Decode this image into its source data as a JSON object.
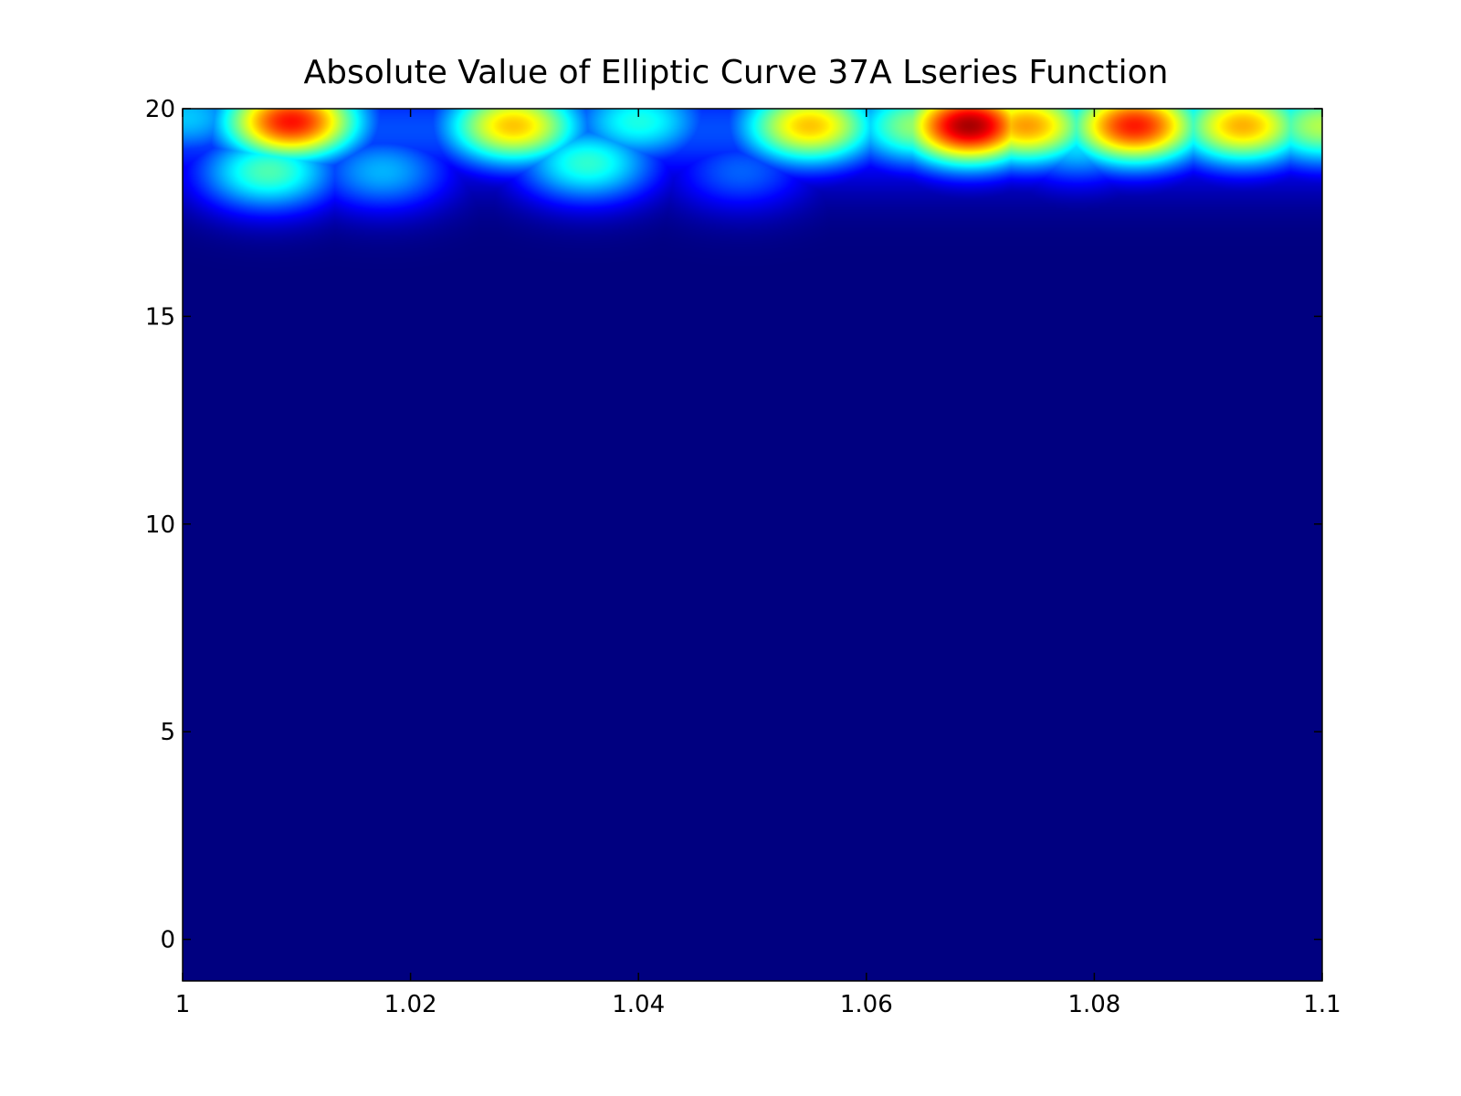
{
  "chart_data": {
    "type": "heatmap",
    "title": "Absolute Value of Elliptic Curve 37A Lseries Function",
    "xlabel": "",
    "ylabel": "",
    "xlim": [
      1.0,
      1.1
    ],
    "ylim": [
      -1,
      20
    ],
    "x_ticks": [
      {
        "value": 1.0,
        "label": "1"
      },
      {
        "value": 1.02,
        "label": "1.02"
      },
      {
        "value": 1.04,
        "label": "1.04"
      },
      {
        "value": 1.06,
        "label": "1.06"
      },
      {
        "value": 1.08,
        "label": "1.08"
      },
      {
        "value": 1.1,
        "label": "1.1"
      }
    ],
    "y_ticks": [
      {
        "value": 0,
        "label": "0"
      },
      {
        "value": 5,
        "label": "5"
      },
      {
        "value": 10,
        "label": "10"
      },
      {
        "value": 15,
        "label": "15"
      },
      {
        "value": 20,
        "label": "20"
      }
    ],
    "colormap": "jet",
    "grid": false,
    "background_level": 0.0,
    "description_of_values": "normalized intensity 0-1; near zero everywhere except a band above y≈17",
    "peaks": [
      {
        "x": 1.0003,
        "y": 19.8,
        "value": 0.32
      },
      {
        "x": 1.0095,
        "y": 19.7,
        "value": 0.86
      },
      {
        "x": 1.0075,
        "y": 18.5,
        "value": 0.45
      },
      {
        "x": 1.0175,
        "y": 18.5,
        "value": 0.3
      },
      {
        "x": 1.029,
        "y": 19.6,
        "value": 0.68
      },
      {
        "x": 1.0355,
        "y": 18.7,
        "value": 0.42
      },
      {
        "x": 1.04,
        "y": 19.7,
        "value": 0.4
      },
      {
        "x": 1.049,
        "y": 18.5,
        "value": 0.22
      },
      {
        "x": 1.055,
        "y": 19.6,
        "value": 0.68
      },
      {
        "x": 1.0645,
        "y": 19.6,
        "value": 0.52
      },
      {
        "x": 1.069,
        "y": 19.6,
        "value": 0.96
      },
      {
        "x": 1.074,
        "y": 19.6,
        "value": 0.72
      },
      {
        "x": 1.0785,
        "y": 19.2,
        "value": 0.35
      },
      {
        "x": 1.0835,
        "y": 19.6,
        "value": 0.85
      },
      {
        "x": 1.093,
        "y": 19.6,
        "value": 0.7
      },
      {
        "x": 1.1,
        "y": 19.6,
        "value": 0.55
      }
    ]
  }
}
